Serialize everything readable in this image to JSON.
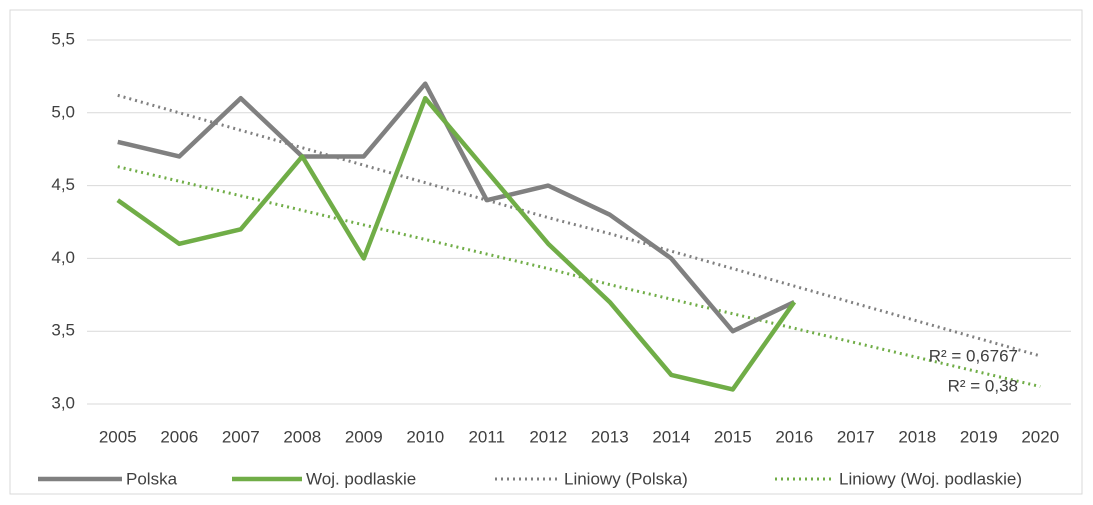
{
  "chart_data": {
    "type": "line",
    "categories": [
      "2005",
      "2006",
      "2007",
      "2008",
      "2009",
      "2010",
      "2011",
      "2012",
      "2013",
      "2014",
      "2015",
      "2016",
      "2017",
      "2018",
      "2019",
      "2020"
    ],
    "series": [
      {
        "name": "Polska",
        "color": "#808080",
        "style": "solid",
        "values": [
          4.8,
          4.7,
          5.1,
          4.7,
          4.7,
          5.2,
          4.4,
          4.5,
          4.3,
          4.0,
          3.5,
          3.7,
          null,
          null,
          null,
          null
        ]
      },
      {
        "name": "Woj. podlaskie",
        "color": "#70ad47",
        "style": "solid",
        "values": [
          4.4,
          4.1,
          4.2,
          4.7,
          4.0,
          5.1,
          4.6,
          4.1,
          3.7,
          3.2,
          3.1,
          3.7,
          null,
          null,
          null,
          null
        ]
      },
      {
        "name": "Liniowy (Polska)",
        "color": "#808080",
        "style": "dotted",
        "values": [
          5.12,
          5.0,
          4.88,
          4.76,
          4.64,
          4.52,
          4.4,
          4.28,
          4.17,
          4.05,
          3.93,
          3.81,
          3.69,
          3.57,
          3.45,
          3.33
        ]
      },
      {
        "name": "Liniowy (Woj. podlaskie)",
        "color": "#70ad47",
        "style": "dotted",
        "values": [
          4.63,
          4.53,
          4.43,
          4.33,
          4.23,
          4.13,
          4.03,
          3.93,
          3.82,
          3.72,
          3.62,
          3.52,
          3.42,
          3.32,
          3.22,
          3.12
        ]
      }
    ],
    "annotations": [
      "R² = 0,6767",
      "R² = 0,38"
    ],
    "ylim": [
      3,
      5.5
    ],
    "yticks": [
      {
        "value": 3,
        "label": "3,0"
      },
      {
        "value": 3.5,
        "label": "3,5"
      },
      {
        "value": 4,
        "label": "4,0"
      },
      {
        "value": 4.5,
        "label": "4,5"
      },
      {
        "value": 5,
        "label": "5,0"
      },
      {
        "value": 5.5,
        "label": "5,5"
      }
    ],
    "grid": true,
    "legend": "bottom"
  }
}
